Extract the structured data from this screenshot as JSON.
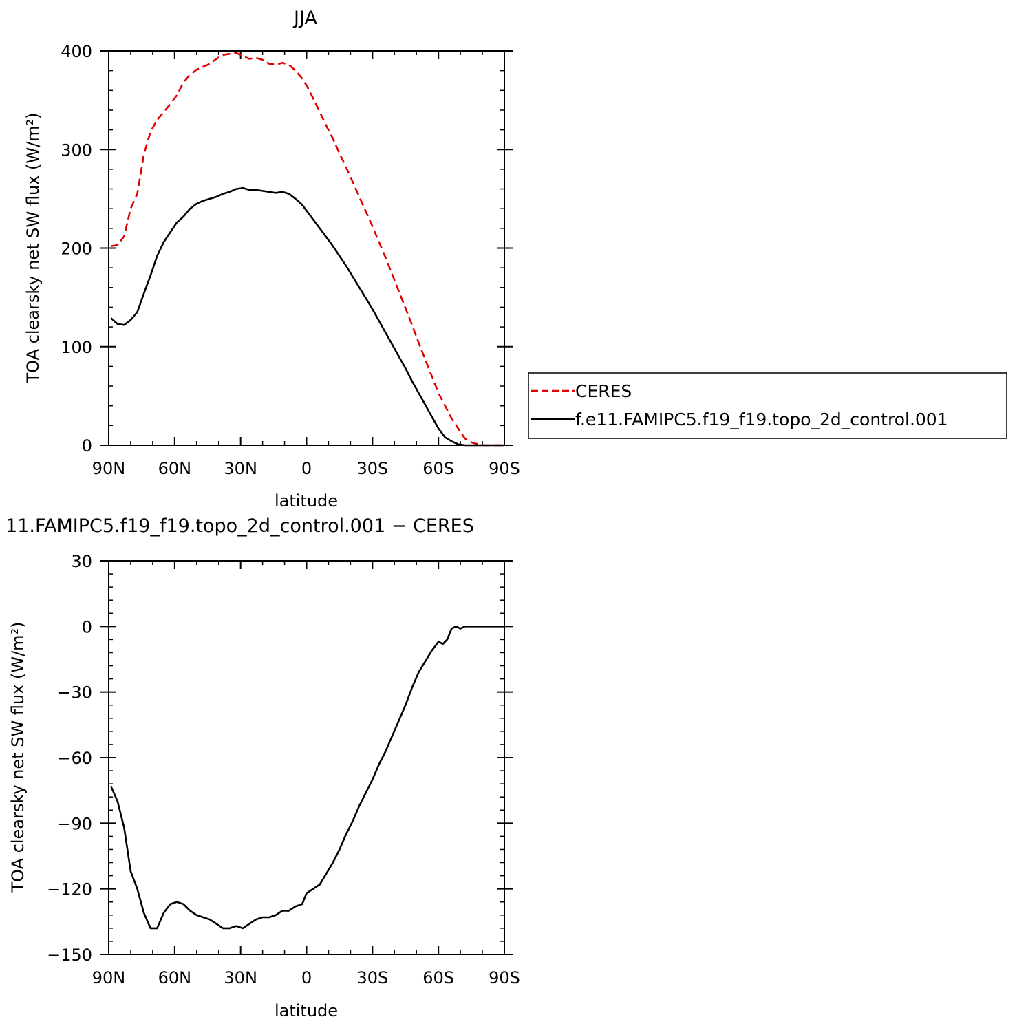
{
  "chart_data": [
    {
      "type": "line",
      "title": "JJA",
      "xlabel": "latitude",
      "ylabel": "TOA clearsky net SW flux (W/m²)",
      "xlim": [
        90,
        -90
      ],
      "ylim": [
        0,
        400
      ],
      "x_tick_labels": [
        {
          "value": 90,
          "label": "90N"
        },
        {
          "value": 60,
          "label": "60N"
        },
        {
          "value": 30,
          "label": "30N"
        },
        {
          "value": 0,
          "label": "0"
        },
        {
          "value": -30,
          "label": "30S"
        },
        {
          "value": -60,
          "label": "60S"
        },
        {
          "value": -90,
          "label": "90S"
        }
      ],
      "y_tick_labels": [
        {
          "value": 0,
          "label": "0"
        },
        {
          "value": 100,
          "label": "100"
        },
        {
          "value": 200,
          "label": "200"
        },
        {
          "value": 300,
          "label": "300"
        },
        {
          "value": 400,
          "label": "400"
        }
      ],
      "legend": {
        "placement": "right"
      },
      "series": [
        {
          "name": "CERES",
          "color": "#e00000",
          "dash": true,
          "x": [
            89,
            86,
            83,
            80,
            77,
            74,
            71,
            68,
            65,
            62,
            59,
            56,
            53,
            50,
            47,
            44,
            41,
            38,
            35,
            32,
            29,
            26,
            23,
            20,
            17,
            14,
            11,
            8,
            5,
            2,
            0,
            -3,
            -6,
            -9,
            -12,
            -15,
            -18,
            -21,
            -24,
            -27,
            -30,
            -33,
            -36,
            -39,
            -42,
            -45,
            -48,
            -51,
            -54,
            -57,
            -60,
            -63,
            -66,
            -69,
            -72,
            -75,
            -78,
            -81,
            -84,
            -87,
            -90
          ],
          "y": [
            202,
            203,
            212,
            240,
            255,
            295,
            318,
            330,
            338,
            346,
            355,
            368,
            376,
            381,
            384,
            387,
            392,
            396,
            397,
            398,
            395,
            392,
            393,
            391,
            387,
            386,
            388,
            386,
            380,
            372,
            365,
            352,
            338,
            324,
            311,
            296,
            282,
            267,
            252,
            237,
            222,
            206,
            190,
            173,
            156,
            139,
            122,
            104,
            87,
            70,
            53,
            40,
            27,
            17,
            7,
            3,
            1,
            0,
            0,
            0,
            0
          ]
        },
        {
          "name": "f.e11.FAMIPC5.f19_f19.topo_2d_control.001",
          "color": "#000000",
          "dash": false,
          "x": [
            89,
            86,
            83,
            80,
            77,
            74,
            71,
            68,
            65,
            62,
            59,
            56,
            53,
            50,
            47,
            44,
            41,
            38,
            35,
            32,
            29,
            26,
            23,
            20,
            17,
            14,
            11,
            8,
            5,
            2,
            0,
            -3,
            -6,
            -9,
            -12,
            -15,
            -18,
            -21,
            -24,
            -27,
            -30,
            -33,
            -36,
            -39,
            -42,
            -45,
            -48,
            -51,
            -54,
            -57,
            -60,
            -63,
            -66,
            -69,
            -72,
            -75,
            -78,
            -81,
            -84,
            -87,
            -90
          ],
          "y": [
            129,
            123,
            122,
            127,
            135,
            154,
            172,
            192,
            206,
            216,
            226,
            232,
            240,
            245,
            248,
            250,
            252,
            255,
            257,
            260,
            261,
            259,
            259,
            258,
            257,
            256,
            257,
            255,
            250,
            244,
            238,
            229,
            220,
            211,
            202,
            192,
            182,
            171,
            160,
            149,
            138,
            126,
            114,
            102,
            90,
            78,
            65,
            53,
            41,
            29,
            17,
            8,
            4,
            1,
            0,
            0,
            0,
            0,
            0,
            0,
            0
          ]
        }
      ]
    },
    {
      "type": "line",
      "title": "11.FAMIPC5.f19_f19.topo_2d_control.001 − CERES",
      "xlabel": "latitude",
      "ylabel": "TOA clearsky net SW flux (W/m²)",
      "xlim": [
        90,
        -90
      ],
      "ylim": [
        -150,
        30
      ],
      "x_tick_labels": [
        {
          "value": 90,
          "label": "90N"
        },
        {
          "value": 60,
          "label": "60N"
        },
        {
          "value": 30,
          "label": "30N"
        },
        {
          "value": 0,
          "label": "0"
        },
        {
          "value": -30,
          "label": "30S"
        },
        {
          "value": -60,
          "label": "60S"
        },
        {
          "value": -90,
          "label": "90S"
        }
      ],
      "y_tick_labels": [
        {
          "value": -150,
          "label": "−150"
        },
        {
          "value": -120,
          "label": "−120"
        },
        {
          "value": -90,
          "label": "−90"
        },
        {
          "value": -60,
          "label": "−60"
        },
        {
          "value": -30,
          "label": "−30"
        },
        {
          "value": 0,
          "label": "0"
        },
        {
          "value": 30,
          "label": "30"
        }
      ],
      "series": [
        {
          "color": "#000000",
          "dash": false,
          "x": [
            89,
            86,
            83,
            80,
            77,
            74,
            71,
            68,
            65,
            62,
            59,
            56,
            53,
            50,
            47,
            44,
            41,
            38,
            35,
            32,
            29,
            26,
            23,
            20,
            17,
            14,
            11,
            8,
            5,
            2,
            0,
            -3,
            -6,
            -9,
            -12,
            -15,
            -18,
            -21,
            -24,
            -27,
            -30,
            -33,
            -36,
            -39,
            -42,
            -45,
            -48,
            -51,
            -54,
            -57,
            -60,
            -62,
            -64,
            -66,
            -68,
            -70,
            -72,
            -75,
            -78,
            -81,
            -84,
            -87,
            -90
          ],
          "y": [
            -73,
            -80,
            -92,
            -112,
            -120,
            -131,
            -138,
            -138,
            -131,
            -127,
            -126,
            -127,
            -130,
            -132,
            -133,
            -134,
            -136,
            -138,
            -138,
            -137,
            -138,
            -136,
            -134,
            -133,
            -133,
            -132,
            -130,
            -130,
            -128,
            -127,
            -122,
            -120,
            -118,
            -113,
            -108,
            -102,
            -95,
            -89,
            -82,
            -76,
            -70,
            -63,
            -57,
            -50,
            -43,
            -36,
            -28,
            -21,
            -16,
            -11,
            -7,
            -8,
            -6,
            -1,
            0,
            -1,
            0,
            0,
            0,
            0,
            0,
            0,
            0
          ]
        }
      ]
    }
  ]
}
